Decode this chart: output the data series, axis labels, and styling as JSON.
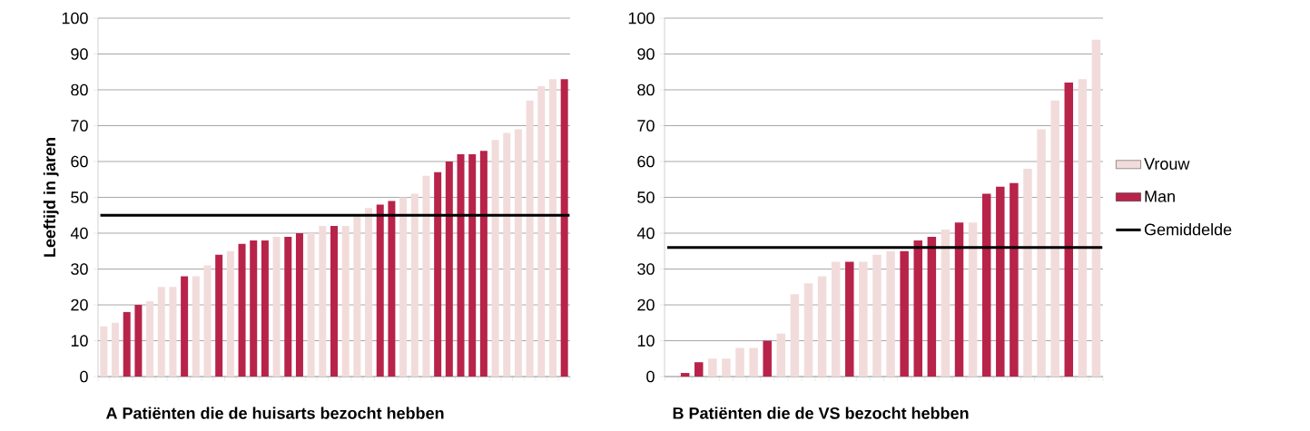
{
  "chart_data": [
    {
      "type": "bar",
      "ylabel": "Leeftijd in jaren",
      "xlabel": "A Patiënten die de huisarts bezocht hebben",
      "categories": [
        null,
        null,
        null,
        null,
        null,
        null,
        null,
        null,
        null,
        null,
        null,
        null,
        null,
        null,
        null,
        null,
        null,
        null,
        null,
        null,
        null,
        null,
        null,
        null,
        null,
        null,
        null,
        null,
        null,
        null,
        null,
        null,
        null,
        null,
        null,
        null,
        null,
        null,
        null,
        null,
        null
      ],
      "series": [
        {
          "color": "#f2dcdb",
          "values": [
            14,
            15,
            null,
            null,
            21,
            25,
            25,
            null,
            28,
            31,
            null,
            35,
            null,
            null,
            null,
            39,
            null,
            null,
            40,
            42,
            null,
            42,
            45,
            47,
            null,
            null,
            50,
            51,
            56,
            null,
            null,
            null,
            null,
            null,
            66,
            68,
            69,
            77,
            81,
            83,
            null
          ]
        },
        {
          "color": "#b8234a",
          "values": [
            null,
            null,
            18,
            20,
            null,
            null,
            null,
            28,
            null,
            null,
            34,
            null,
            37,
            38,
            38,
            null,
            39,
            40,
            null,
            null,
            42,
            null,
            null,
            null,
            48,
            49,
            null,
            null,
            null,
            57,
            60,
            62,
            62,
            63,
            null,
            null,
            null,
            null,
            null,
            null,
            83
          ]
        }
      ],
      "ylim": [
        0,
        100
      ],
      "yticks": [
        0,
        10,
        20,
        30,
        40,
        50,
        60,
        70,
        80,
        90,
        100
      ],
      "grid": "y",
      "ref_lines": [
        {
          "axis": "y",
          "value": 45,
          "color": "#000000"
        }
      ]
    },
    {
      "type": "bar",
      "xlabel": "B Patiënten die de VS bezocht hebben",
      "categories": [
        null,
        null,
        null,
        null,
        null,
        null,
        null,
        null,
        null,
        null,
        null,
        null,
        null,
        null,
        null,
        null,
        null,
        null,
        null,
        null,
        null,
        null,
        null,
        null,
        null,
        null,
        null,
        null,
        null,
        null,
        null,
        null
      ],
      "series": [
        {
          "name": "Vrouw",
          "color": "#f2dcdb",
          "values": [
            null,
            null,
            null,
            5,
            5,
            8,
            8,
            null,
            12,
            23,
            26,
            28,
            32,
            null,
            32,
            34,
            35,
            null,
            null,
            null,
            41,
            null,
            43,
            null,
            null,
            null,
            58,
            69,
            77,
            null,
            83,
            94
          ]
        },
        {
          "name": "Man",
          "color": "#b8234a",
          "values": [
            null,
            1,
            4,
            null,
            null,
            null,
            null,
            10,
            null,
            null,
            null,
            null,
            null,
            32,
            null,
            null,
            null,
            35,
            38,
            39,
            null,
            43,
            null,
            51,
            53,
            54,
            null,
            null,
            null,
            82,
            null,
            null
          ]
        }
      ],
      "ylim": [
        0,
        100
      ],
      "yticks": [
        0,
        10,
        20,
        30,
        40,
        50,
        60,
        70,
        80,
        90,
        100
      ],
      "grid": "y",
      "legend": "right",
      "ref_lines": [
        {
          "axis": "y",
          "value": 36,
          "label": "Gemiddelde",
          "color": "#000000"
        }
      ]
    }
  ]
}
